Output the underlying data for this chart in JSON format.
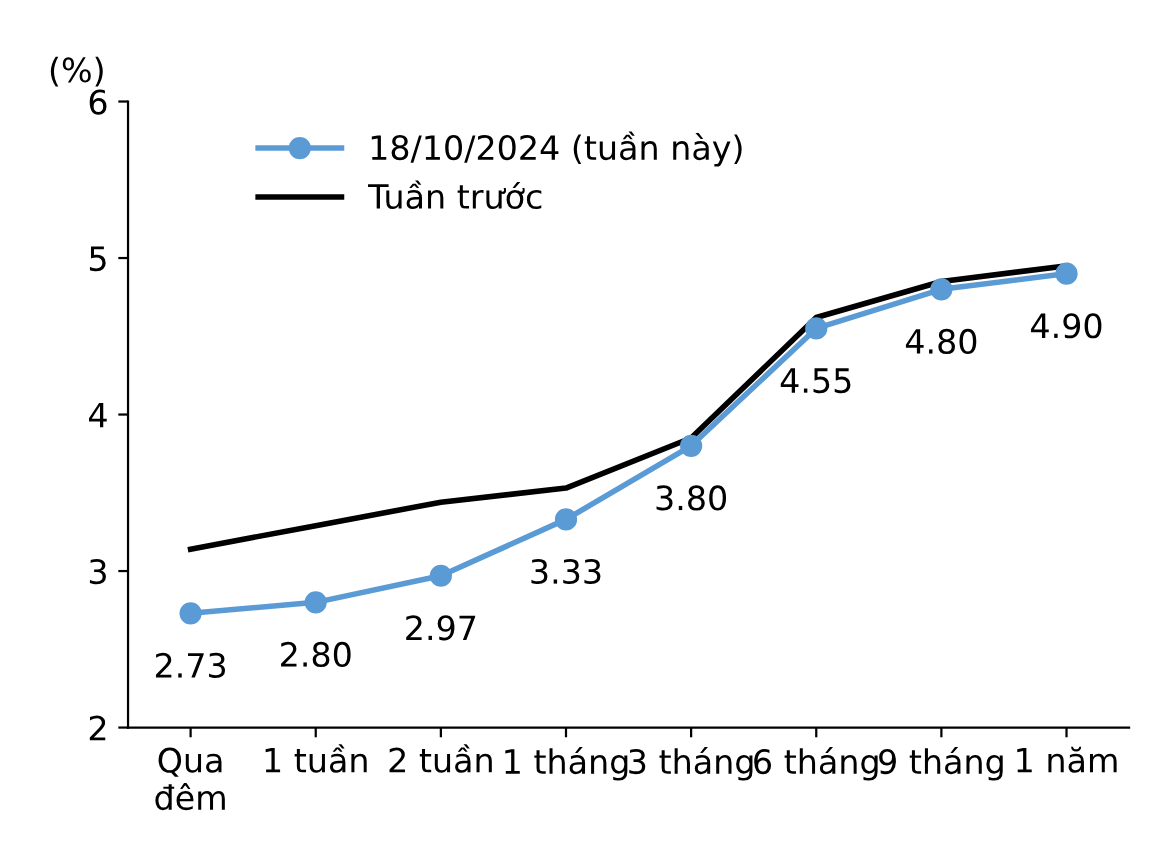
{
  "chart_data": {
    "type": "line",
    "ylabel": "(%)",
    "categories": [
      "Qua\nđêm",
      "1 tuần",
      "2 tuần",
      "1 tháng",
      "3 tháng",
      "6 tháng",
      "9 tháng",
      "1 năm"
    ],
    "series": [
      {
        "name": "18/10/2024 (tuần này)",
        "color": "#5b9bd5",
        "marker": "circle",
        "values": [
          2.73,
          2.8,
          2.97,
          3.33,
          3.8,
          4.55,
          4.8,
          4.9
        ],
        "value_labels": [
          "2.73",
          "2.80",
          "2.97",
          "3.33",
          "3.80",
          "4.55",
          "4.80",
          "4.90"
        ]
      },
      {
        "name": "Tuần trước",
        "color": "#000000",
        "marker": "none",
        "values": [
          3.14,
          3.29,
          3.44,
          3.53,
          3.85,
          4.62,
          4.85,
          4.95
        ]
      }
    ],
    "ylim": [
      2,
      6
    ],
    "yticks": [
      2,
      3,
      4,
      5,
      6
    ],
    "grid": false,
    "legend": "top left",
    "line_style": "solid"
  }
}
